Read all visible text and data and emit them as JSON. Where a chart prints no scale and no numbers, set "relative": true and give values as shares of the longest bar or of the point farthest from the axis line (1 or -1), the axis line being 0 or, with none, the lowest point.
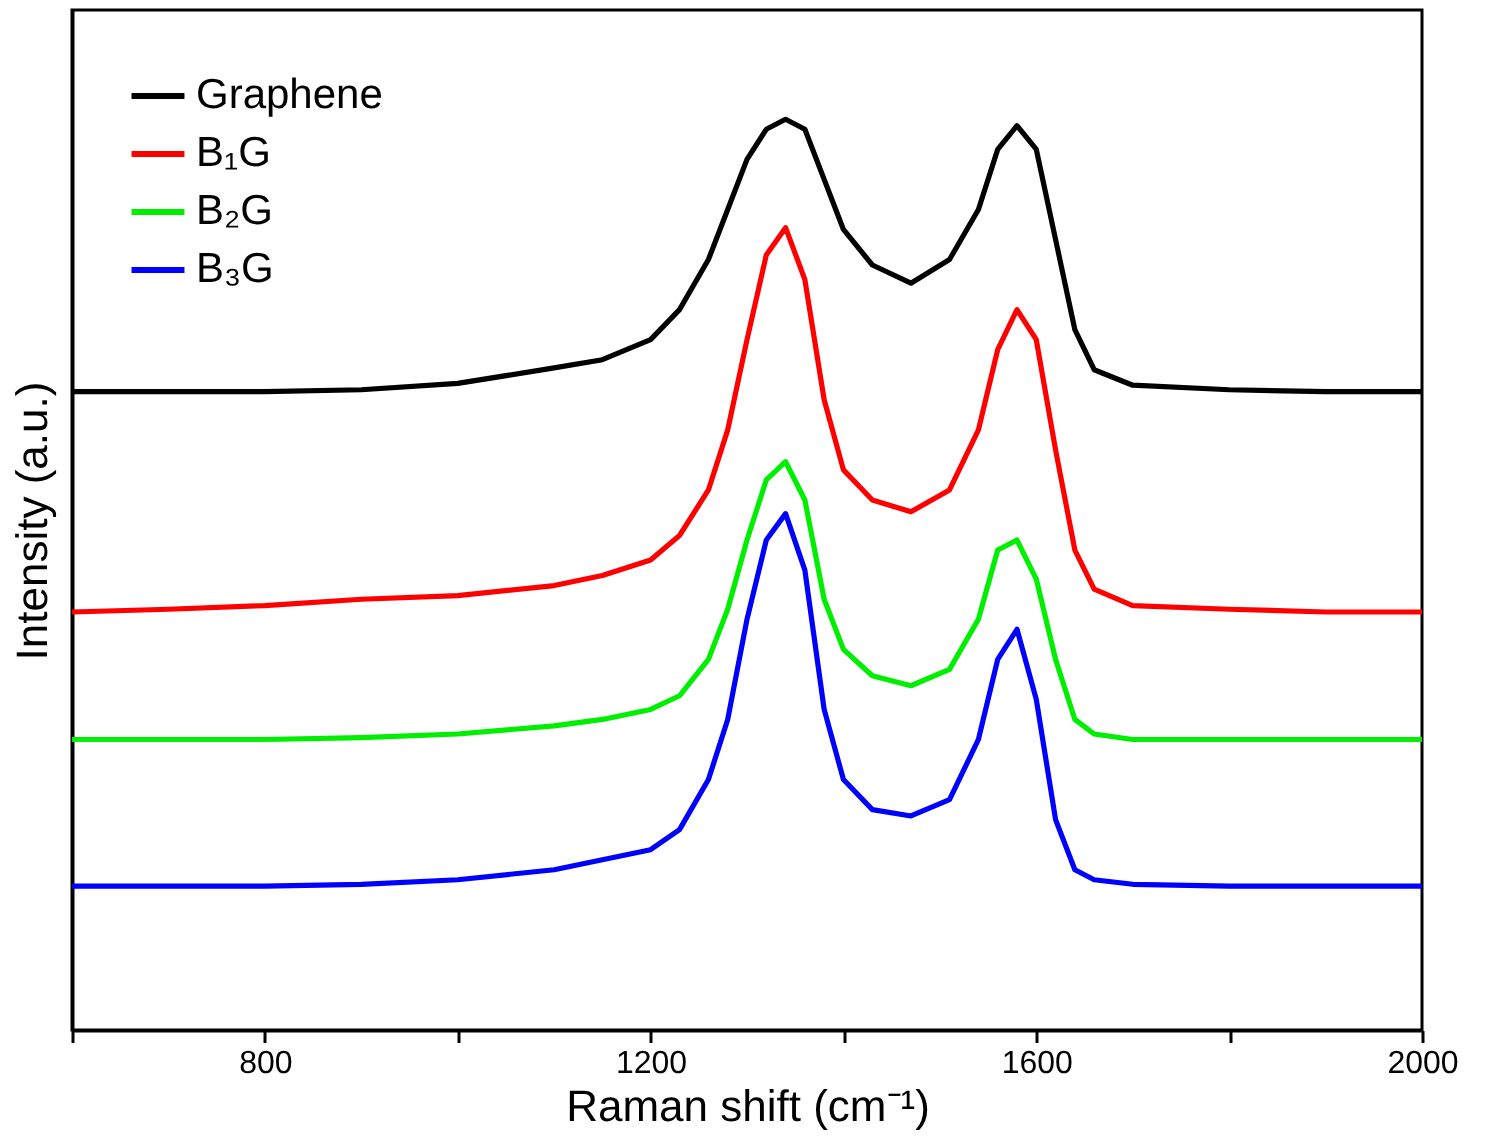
{
  "chart_data": {
    "type": "line",
    "xlabel": "Raman shift (cm⁻¹)",
    "ylabel": "Intensity (a.u.)",
    "relative": true,
    "x": [
      600,
      700,
      800,
      900,
      1000,
      1100,
      1150,
      1200,
      1230,
      1260,
      1280,
      1300,
      1320,
      1340,
      1360,
      1380,
      1400,
      1430,
      1470,
      1510,
      1540,
      1560,
      1580,
      1600,
      1620,
      1640,
      1660,
      1700,
      1800,
      1900,
      2000
    ],
    "xlim": [
      600,
      2000
    ],
    "xticks": [
      {
        "value": 600,
        "label": null
      },
      800,
      {
        "value": 1000,
        "label": null
      },
      1200,
      {
        "value": 1400,
        "label": null
      },
      1600,
      {
        "value": 1800,
        "label": null
      },
      2000
    ],
    "series": [
      {
        "name": "Graphene",
        "color": "#000000",
        "values": [
          0.701,
          0.701,
          0.701,
          0.703,
          0.71,
          0.727,
          0.736,
          0.758,
          0.791,
          0.846,
          0.901,
          0.956,
          0.989,
          1.0,
          0.989,
          0.934,
          0.879,
          0.84,
          0.82,
          0.846,
          0.901,
          0.967,
          0.993,
          0.967,
          0.868,
          0.769,
          0.725,
          0.708,
          0.703,
          0.701,
          0.701
        ]
      },
      {
        "name": "B₁G",
        "color": "#ff0000",
        "values": [
          0.459,
          0.462,
          0.466,
          0.473,
          0.477,
          0.488,
          0.499,
          0.516,
          0.543,
          0.593,
          0.659,
          0.758,
          0.851,
          0.881,
          0.824,
          0.692,
          0.615,
          0.582,
          0.569,
          0.593,
          0.659,
          0.747,
          0.791,
          0.758,
          0.637,
          0.527,
          0.484,
          0.466,
          0.462,
          0.459,
          0.459
        ]
      },
      {
        "name": "B₂G",
        "color": "#00ee00",
        "values": [
          0.319,
          0.319,
          0.319,
          0.321,
          0.325,
          0.334,
          0.341,
          0.352,
          0.367,
          0.407,
          0.462,
          0.538,
          0.604,
          0.624,
          0.582,
          0.473,
          0.418,
          0.389,
          0.378,
          0.396,
          0.451,
          0.527,
          0.538,
          0.495,
          0.407,
          0.341,
          0.325,
          0.319,
          0.319,
          0.319,
          0.319
        ]
      },
      {
        "name": "B₃G",
        "color": "#0000ff",
        "values": [
          0.158,
          0.158,
          0.158,
          0.16,
          0.165,
          0.176,
          0.187,
          0.198,
          0.22,
          0.275,
          0.341,
          0.451,
          0.538,
          0.567,
          0.505,
          0.352,
          0.275,
          0.242,
          0.235,
          0.253,
          0.319,
          0.407,
          0.44,
          0.363,
          0.231,
          0.176,
          0.165,
          0.16,
          0.158,
          0.158,
          0.158
        ]
      }
    ],
    "legend": "top left",
    "grid": false,
    "marker": "none",
    "line_style": "solid"
  }
}
